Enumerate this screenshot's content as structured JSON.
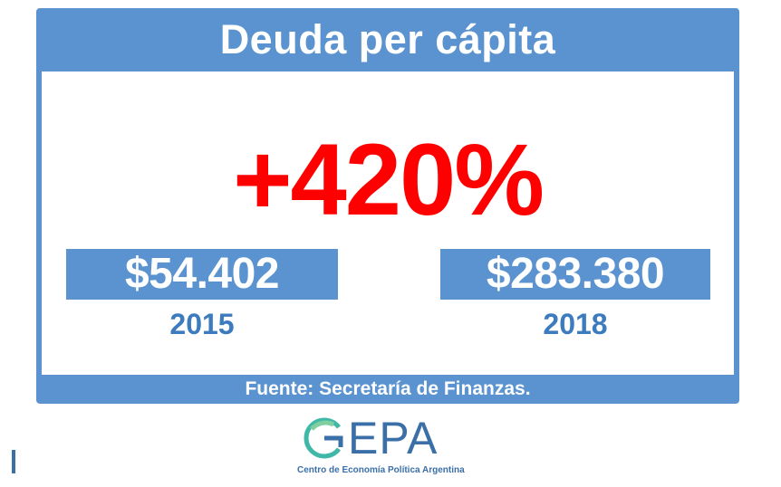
{
  "title": "Deuda per cápita",
  "increase": "+420%",
  "values": [
    {
      "amount": "$54.402",
      "year": "2015"
    },
    {
      "amount": "$283.380",
      "year": "2018"
    }
  ],
  "source": "Fuente: Secretaría de Finanzas.",
  "logo": {
    "name": "GEPA",
    "name_rest": "EPA",
    "subtitle": "Centro de Economía Política Argentina",
    "icon": "cepa-logo-icon"
  },
  "colors": {
    "panel_blue": "#5a93cf",
    "highlight_red": "#ff0000",
    "year_blue": "#3d7bbf",
    "logo_blue": "#3a6fa8",
    "logo_teal": "#3fb8a8"
  }
}
